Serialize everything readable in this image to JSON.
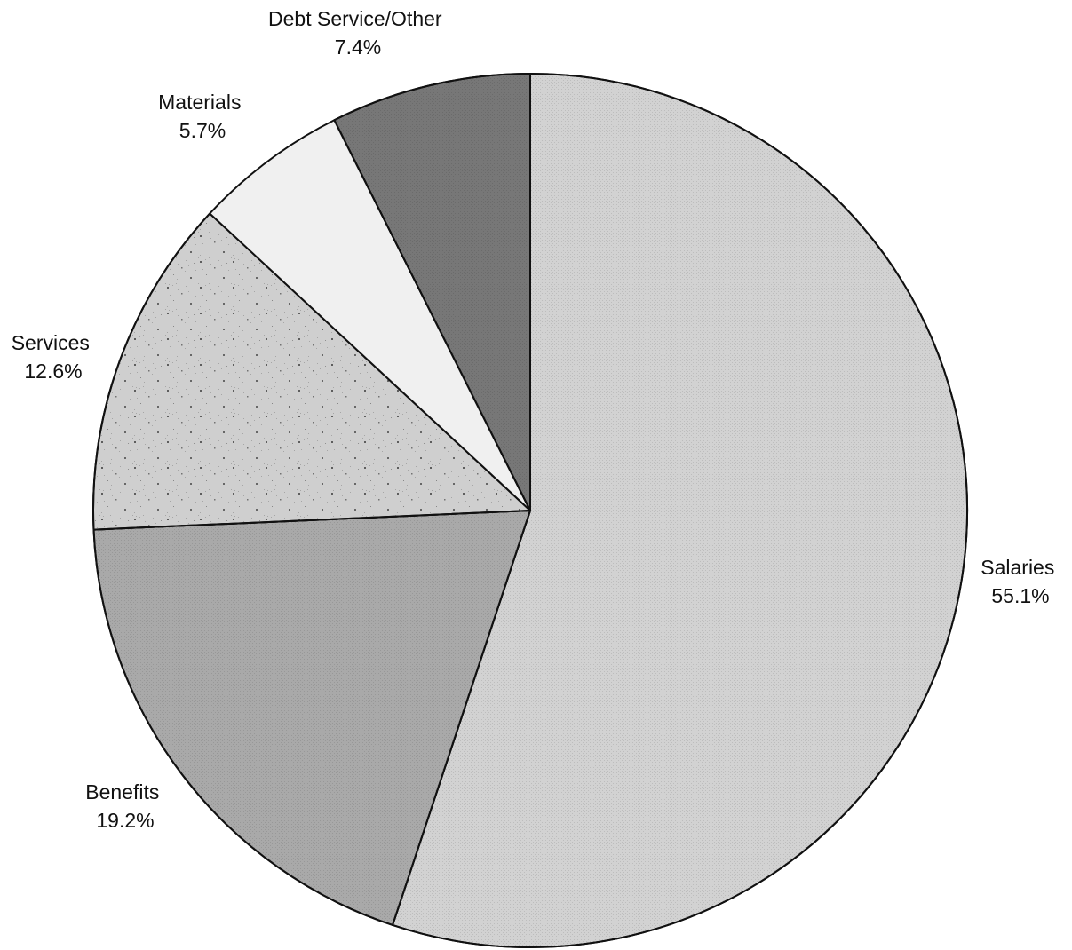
{
  "chart_data": {
    "type": "pie",
    "title": "",
    "start_angle_deg": 0,
    "direction": "clockwise",
    "slices": [
      {
        "label": "Salaries",
        "value": 55.1,
        "value_label": "55.1%",
        "fill": "#d2d2d2",
        "pattern": "fine-grain"
      },
      {
        "label": "Benefits",
        "value": 19.2,
        "value_label": "19.2%",
        "fill": "#a9a9a9",
        "pattern": "fine-grain"
      },
      {
        "label": "Services",
        "value": 12.6,
        "value_label": "12.6%",
        "fill": "#cfcfcf",
        "pattern": "speckle"
      },
      {
        "label": "Materials",
        "value": 5.7,
        "value_label": "5.7%",
        "fill": "#f0f0f0",
        "pattern": "none"
      },
      {
        "label": "Debt Service/Other",
        "value": 7.4,
        "value_label": "7.4%",
        "fill": "#777777",
        "pattern": "fine-grain"
      }
    ]
  }
}
